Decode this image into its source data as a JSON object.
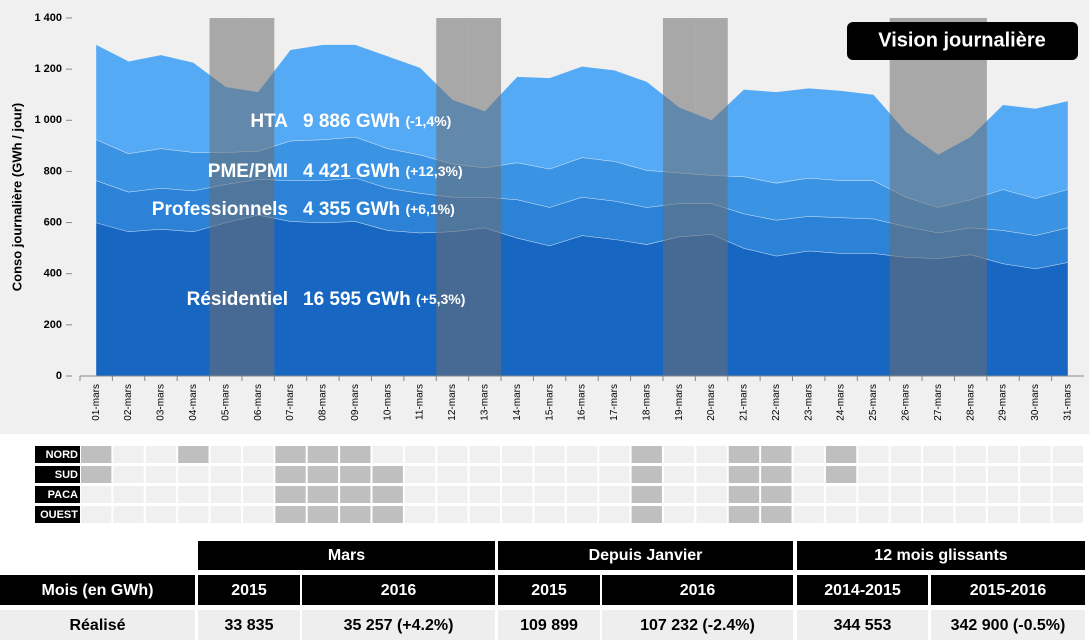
{
  "chart_data": {
    "type": "stacked_area",
    "badge": "Vision journalière",
    "ylabel": "Conso journalière (GWh / jour)",
    "categories": [
      "01-mars",
      "02-mars",
      "03-mars",
      "04-mars",
      "05-mars",
      "06-mars",
      "07-mars",
      "08-mars",
      "09-mars",
      "10-mars",
      "11-mars",
      "12-mars",
      "13-mars",
      "14-mars",
      "15-mars",
      "16-mars",
      "17-mars",
      "18-mars",
      "19-mars",
      "20-mars",
      "21-mars",
      "22-mars",
      "23-mars",
      "24-mars",
      "25-mars",
      "26-mars",
      "27-mars",
      "28-mars",
      "29-mars",
      "30-mars",
      "31-mars"
    ],
    "ylim": [
      0,
      1400
    ],
    "yticks": [
      0,
      200,
      400,
      600,
      800,
      {
        "value": 1000,
        "label": "1 000"
      },
      {
        "value": 1200,
        "label": "1 200"
      },
      {
        "value": 1400,
        "label": "1 400"
      }
    ],
    "weekend": [
      0,
      0,
      0,
      0,
      1,
      1,
      0,
      0,
      0,
      0,
      0,
      1,
      1,
      0,
      0,
      0,
      0,
      0,
      1,
      1,
      0,
      0,
      0,
      0,
      0,
      1,
      1,
      1,
      0,
      0,
      0
    ],
    "series": [
      {
        "name": "Résidentiel",
        "total": "16 595 GWh",
        "change": "(+5,3%)",
        "color": "#1767c2",
        "values": [
          600,
          565,
          575,
          565,
          600,
          630,
          605,
          600,
          605,
          570,
          560,
          565,
          580,
          540,
          510,
          550,
          535,
          515,
          545,
          555,
          500,
          470,
          490,
          480,
          480,
          465,
          460,
          475,
          440,
          420,
          445
        ]
      },
      {
        "name": "Professionnels",
        "total": "4 355 GWh",
        "change": "(+6,1%)",
        "color": "#2b82d6",
        "values": [
          165,
          155,
          160,
          160,
          150,
          140,
          160,
          165,
          170,
          165,
          155,
          135,
          120,
          150,
          150,
          150,
          150,
          145,
          130,
          120,
          135,
          140,
          135,
          140,
          135,
          120,
          100,
          105,
          130,
          130,
          135
        ]
      },
      {
        "name": "PME/PMI",
        "total": "4 421 GWh",
        "change": "(+12,3%)",
        "color": "#3b93e3",
        "values": [
          160,
          150,
          155,
          150,
          125,
          110,
          155,
          160,
          160,
          155,
          150,
          130,
          115,
          145,
          150,
          155,
          155,
          145,
          120,
          110,
          145,
          145,
          150,
          145,
          150,
          115,
          100,
          110,
          160,
          145,
          150
        ]
      },
      {
        "name": "HTA",
        "total": "9 886 GWh",
        "change": "(-1,4%)",
        "color": "#55aaf5",
        "values": [
          370,
          360,
          365,
          350,
          255,
          230,
          355,
          370,
          360,
          360,
          340,
          250,
          220,
          335,
          355,
          355,
          355,
          345,
          255,
          215,
          340,
          355,
          350,
          350,
          335,
          255,
          205,
          245,
          330,
          350,
          345
        ]
      }
    ],
    "regions": [
      {
        "name": "NORD",
        "days": [
          1,
          0,
          0,
          1,
          0,
          0,
          1,
          1,
          1,
          0,
          0,
          0,
          0,
          0,
          0,
          0,
          0,
          1,
          0,
          0,
          1,
          1,
          0,
          1,
          0,
          0,
          0,
          0,
          0,
          0,
          0
        ]
      },
      {
        "name": "SUD",
        "days": [
          1,
          0,
          0,
          0,
          0,
          0,
          1,
          1,
          1,
          1,
          0,
          0,
          0,
          0,
          0,
          0,
          0,
          1,
          0,
          0,
          1,
          1,
          0,
          1,
          0,
          0,
          0,
          0,
          0,
          0,
          0
        ]
      },
      {
        "name": "PACA",
        "days": [
          0,
          0,
          0,
          0,
          0,
          0,
          1,
          1,
          1,
          1,
          0,
          0,
          0,
          0,
          0,
          0,
          0,
          1,
          0,
          0,
          1,
          1,
          0,
          0,
          0,
          0,
          0,
          0,
          0,
          0,
          0
        ]
      },
      {
        "name": "OUEST",
        "days": [
          0,
          0,
          0,
          0,
          0,
          0,
          1,
          1,
          1,
          1,
          0,
          0,
          0,
          0,
          0,
          0,
          0,
          1,
          0,
          0,
          1,
          1,
          0,
          0,
          0,
          0,
          0,
          0,
          0,
          0,
          0
        ]
      }
    ]
  },
  "table": {
    "groups": [
      "Mars",
      "Depuis Janvier",
      "12 mois glissants"
    ],
    "header": [
      "Mois (en GWh)",
      "2015",
      "2016",
      "2015",
      "2016",
      "2014-2015",
      "2015-2016"
    ],
    "rows": [
      [
        "Réalisé",
        "33 835",
        "35 257 (+4.2%)",
        "109 899",
        "107 232 (-2.4%)",
        "344 553",
        "342 900 (-0.5%)"
      ]
    ]
  }
}
